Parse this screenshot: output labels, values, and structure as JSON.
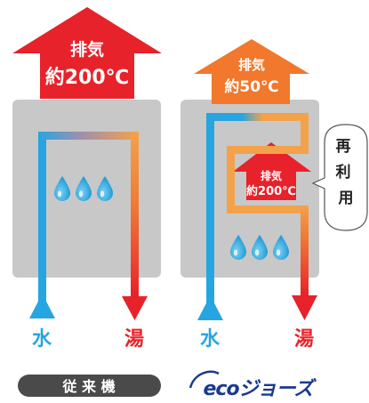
{
  "left": {
    "exhaust_label": "排気",
    "exhaust_temp": "約200℃",
    "water_label": "水",
    "hot_label": "湯",
    "badge": "従 来 機"
  },
  "right": {
    "exhaust_label": "排気",
    "exhaust_temp": "約50℃",
    "inner_exhaust_label": "排気",
    "inner_exhaust_temp": "約200℃",
    "reuse_label": "再利用",
    "water_label": "水",
    "hot_label": "湯",
    "logo_text": "ecoジョーズ"
  },
  "colors": {
    "red": "#e8222a",
    "orange": "#f1782c",
    "blue": "#27a5e0",
    "cabinet": "#c8c8c9",
    "badge": "#4a4a4a"
  }
}
